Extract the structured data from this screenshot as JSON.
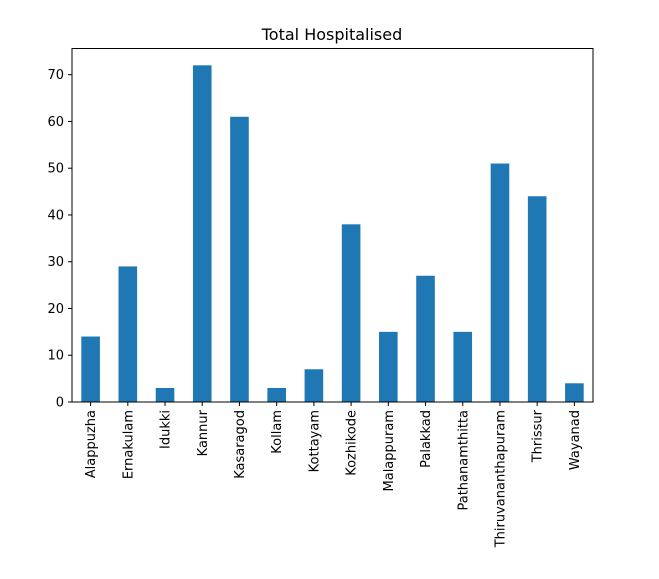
{
  "chart_data": {
    "type": "bar",
    "title": "Total Hospitalised",
    "xlabel": "",
    "ylabel": "",
    "categories": [
      "Alappuzha",
      "Ernakulam",
      "Idukki",
      "Kannur",
      "Kasaragod",
      "Kollam",
      "Kottayam",
      "Kozhikode",
      "Malappuram",
      "Palakkad",
      "Pathanamthitta",
      "Thiruvananthapuram",
      "Thrissur",
      "Wayanad"
    ],
    "values": [
      14,
      29,
      3,
      72,
      61,
      3,
      7,
      38,
      15,
      27,
      15,
      51,
      44,
      4
    ],
    "ylim": [
      0,
      75.6
    ],
    "yticks": [
      0,
      10,
      20,
      30,
      40,
      50,
      60,
      70
    ],
    "grid": false,
    "legend": "none",
    "bar_color": "#1f77b4"
  }
}
